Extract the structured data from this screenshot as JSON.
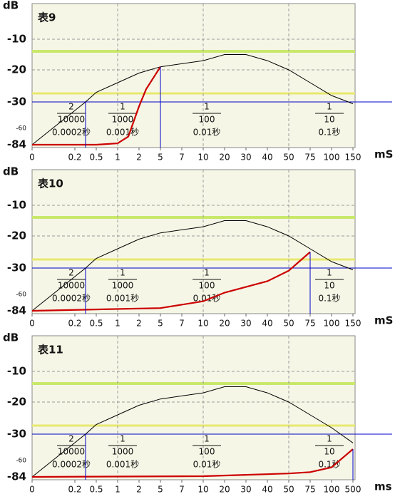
{
  "chart_data": [
    {
      "type": "line",
      "title": "表9",
      "ylabel": "dB",
      "xlabel": "mS",
      "ylim": [
        -84,
        0
      ],
      "yticks": [
        -10,
        -20,
        -30,
        -60,
        -84
      ],
      "xlim": [
        0,
        150
      ],
      "xticks": [
        0,
        0.2,
        0.5,
        1,
        2,
        5,
        7,
        10,
        20,
        30,
        40,
        50,
        75,
        100,
        150
      ],
      "grid": true,
      "reference_line": {
        "value": -30,
        "color": "#0000cc"
      },
      "series": [
        {
          "color": "#000000",
          "x": [
            0,
            0.35,
            0.5,
            1,
            2,
            5,
            10,
            20,
            30,
            40,
            50,
            75,
            100,
            150
          ],
          "values": [
            -84,
            -30,
            -27,
            -24,
            -21,
            -19,
            -17,
            -15,
            -15,
            -17,
            -20,
            -24,
            -28,
            -32
          ]
        },
        {
          "color": "#cc0000",
          "x": [
            0,
            0.5,
            1,
            1.5,
            2,
            3,
            5
          ],
          "values": [
            -84,
            -84,
            -82,
            -72,
            -35,
            -26,
            -19
          ]
        }
      ],
      "annotations": [
        {
          "numerator": "2",
          "denominator": "10000",
          "label": "0.0002秒"
        },
        {
          "numerator": "1",
          "denominator": "1000",
          "label": "0.001秒"
        },
        {
          "numerator": "1",
          "denominator": "100",
          "label": "0.01秒"
        },
        {
          "numerator": "1",
          "denominator": "10",
          "label": "0.1秒"
        }
      ]
    },
    {
      "type": "line",
      "title": "表10",
      "ylabel": "dB",
      "xlabel": "mS",
      "ylim": [
        -84,
        0
      ],
      "yticks": [
        -10,
        -20,
        -30,
        -60,
        -84
      ],
      "xlim": [
        0,
        150
      ],
      "xticks": [
        0,
        0.2,
        0.5,
        1,
        2,
        5,
        7,
        10,
        20,
        30,
        40,
        50,
        75,
        100,
        150
      ],
      "grid": true,
      "reference_line": {
        "value": -30,
        "color": "#0000cc"
      },
      "series": [
        {
          "color": "#000000",
          "x": [
            0,
            0.35,
            0.5,
            1,
            2,
            5,
            10,
            20,
            30,
            40,
            50,
            75,
            100,
            150
          ],
          "values": [
            -84,
            -30,
            -27,
            -24,
            -21,
            -19,
            -17,
            -15,
            -15,
            -17,
            -20,
            -24,
            -28,
            -32
          ]
        },
        {
          "color": "#cc0000",
          "x": [
            0,
            5,
            10,
            20,
            40,
            50,
            75
          ],
          "values": [
            -84,
            -80,
            -70,
            -58,
            -45,
            -33,
            -25
          ]
        }
      ],
      "annotations": [
        {
          "numerator": "2",
          "denominator": "10000",
          "label": "0.0002秒"
        },
        {
          "numerator": "1",
          "denominator": "1000",
          "label": "0.001秒"
        },
        {
          "numerator": "1",
          "denominator": "100",
          "label": "0.01秒"
        },
        {
          "numerator": "1",
          "denominator": "10",
          "label": "0.1秒"
        }
      ]
    },
    {
      "type": "line",
      "title": "表11",
      "ylabel": "dB",
      "xlabel": "ms",
      "ylim": [
        -84,
        0
      ],
      "yticks": [
        -10,
        -20,
        -30,
        -60,
        -84
      ],
      "xlim": [
        0,
        500
      ],
      "xticks": [
        0,
        0.2,
        0.5,
        1,
        2,
        5,
        7,
        10,
        20,
        30,
        40,
        50,
        75,
        100,
        500
      ],
      "grid": true,
      "reference_line": {
        "value": -30,
        "color": "#0000cc"
      },
      "series": [
        {
          "color": "#000000",
          "x": [
            0,
            0.35,
            0.5,
            1,
            2,
            5,
            10,
            20,
            30,
            40,
            50,
            75,
            100,
            500
          ],
          "values": [
            -84,
            -30,
            -27,
            -24,
            -21,
            -19,
            -17,
            -15,
            -15,
            -17,
            -20,
            -24,
            -28,
            -40
          ]
        },
        {
          "color": "#cc0000",
          "x": [
            0,
            10,
            30,
            50,
            75,
            100,
            500
          ],
          "values": [
            -84,
            -83,
            -81,
            -79,
            -77,
            -70,
            -47
          ]
        }
      ],
      "annotations": [
        {
          "numerator": "2",
          "denominator": "10000",
          "label": "0.0002秒"
        },
        {
          "numerator": "1",
          "denominator": "1000",
          "label": "0.001秒"
        },
        {
          "numerator": "1",
          "denominator": "100",
          "label": "0.01秒"
        },
        {
          "numerator": "1",
          "denominator": "10",
          "label": "0.1秒"
        }
      ]
    }
  ]
}
